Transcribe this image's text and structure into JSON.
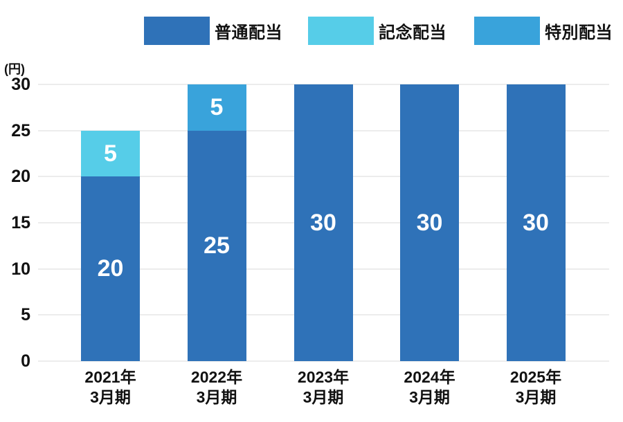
{
  "chart_data": {
    "type": "bar",
    "stacked": true,
    "title": "",
    "xlabel": "",
    "ylabel": "(円)",
    "unit_label": "(円)",
    "ylim": [
      0,
      30
    ],
    "yticks": [
      0,
      5,
      10,
      15,
      20,
      25,
      30
    ],
    "grid": true,
    "legend_position": "top",
    "categories": [
      "2021年3月期",
      "2022年3月期",
      "2023年3月期",
      "2024年3月期",
      "2025年3月期"
    ],
    "category_label_lines": [
      [
        "2021年",
        "3月期"
      ],
      [
        "2022年",
        "3月期"
      ],
      [
        "2023年",
        "3月期"
      ],
      [
        "2024年",
        "3月期"
      ],
      [
        "2025年",
        "3月期"
      ]
    ],
    "series": [
      {
        "name": "普通配当",
        "color": "#2f72b8",
        "values": [
          20,
          25,
          30,
          30,
          30
        ]
      },
      {
        "name": "記念配当",
        "color": "#56cde8",
        "values": [
          5,
          0,
          0,
          0,
          0
        ]
      },
      {
        "name": "特別配当",
        "color": "#39a3db",
        "values": [
          0,
          5,
          0,
          0,
          0
        ]
      }
    ],
    "bar_value_labels": true,
    "totals": [
      25,
      30,
      30,
      30,
      30
    ]
  },
  "colors": {
    "background": "#ffffff",
    "gridline": "#ececec",
    "text": "#111111",
    "bar_label_text": "#ffffff"
  }
}
